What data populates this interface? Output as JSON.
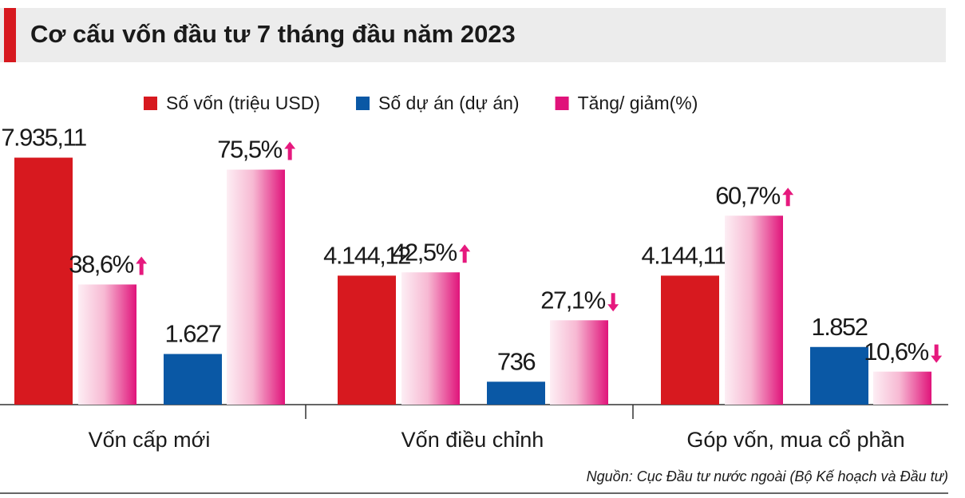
{
  "chart_data": {
    "type": "bar",
    "title": "Cơ cấu vốn đầu tư 7 tháng đầu năm 2023",
    "categories": [
      "Vốn cấp mới",
      "Vốn điều chỉnh",
      "Góp vốn, mua cổ phần"
    ],
    "series": [
      {
        "name": "Số vốn (triệu USD)",
        "color": "#d7191f",
        "values": [
          7935.11,
          4144.12,
          4144.112
        ],
        "value_labels": [
          "7.935,11",
          "4.144,12",
          "4.144,112"
        ]
      },
      {
        "color": "#e6197e",
        "axis": "y2",
        "gradient": true,
        "values": [
          38.6,
          42.5,
          60.7
        ],
        "value_labels": [
          "38,6%",
          "42,5%",
          "60,7%"
        ],
        "trend": [
          "up",
          "up",
          "up"
        ]
      },
      {
        "name": "Số dự án (dự án)",
        "color": "#0a58a5",
        "values": [
          1627,
          736,
          1852
        ],
        "value_labels": [
          "1.627",
          "736",
          "1.852"
        ]
      },
      {
        "name": "Tăng/ giảm(%)",
        "color": "#e6197e",
        "axis": "y2",
        "gradient": true,
        "values": [
          75.5,
          27.1,
          10.6
        ],
        "value_labels": [
          "75,5%",
          "27,1%",
          "10,6%"
        ],
        "trend": [
          "up",
          "down",
          "down"
        ]
      }
    ],
    "ylim": [
      0,
      8000
    ],
    "y2lim": [
      0,
      80
    ],
    "source": "Nguồn: Cục Đầu tư nước ngoài (Bộ Kế hoạch và Đầu tư)"
  }
}
